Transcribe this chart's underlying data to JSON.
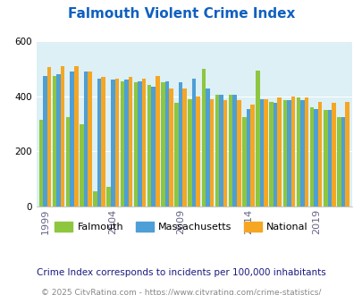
{
  "title": "Falmouth Violent Crime Index",
  "title_color": "#1060C0",
  "years": [
    1999,
    2000,
    2001,
    2002,
    2003,
    2004,
    2005,
    2006,
    2007,
    2008,
    2009,
    2010,
    2011,
    2012,
    2013,
    2014,
    2015,
    2016,
    2017,
    2018,
    2019,
    2020,
    2021
  ],
  "falmouth": [
    315,
    475,
    325,
    300,
    55,
    70,
    455,
    450,
    440,
    450,
    375,
    390,
    500,
    405,
    405,
    325,
    495,
    380,
    385,
    395,
    360,
    350,
    325
  ],
  "massachusetts": [
    475,
    480,
    490,
    490,
    465,
    460,
    460,
    455,
    435,
    455,
    450,
    465,
    430,
    405,
    405,
    355,
    390,
    375,
    385,
    385,
    355,
    350,
    325
  ],
  "national": [
    505,
    510,
    510,
    490,
    470,
    465,
    470,
    465,
    475,
    430,
    430,
    400,
    390,
    385,
    385,
    370,
    390,
    395,
    400,
    395,
    380,
    375,
    380
  ],
  "falmouth_color": "#8DC63F",
  "massachusetts_color": "#4D9FD6",
  "national_color": "#F5A623",
  "plot_bg": "#DCF0F5",
  "ylim": [
    0,
    600
  ],
  "yticks": [
    0,
    200,
    400,
    600
  ],
  "xtick_years": [
    1999,
    2004,
    2009,
    2014,
    2019
  ],
  "note1": "Crime Index corresponds to incidents per 100,000 inhabitants",
  "note2": "© 2025 CityRating.com - https://www.cityrating.com/crime-statistics/",
  "note1_color": "#1A1A80",
  "note2_color": "#888888",
  "legend_labels": [
    "Falmouth",
    "Massachusetts",
    "National"
  ]
}
